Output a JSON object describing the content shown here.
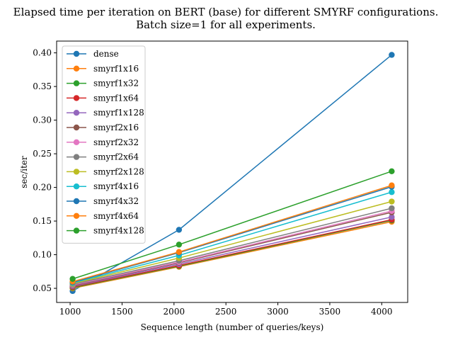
{
  "chart_data": {
    "type": "line",
    "title": "Elapsed time per iteration on BERT (base) for different SMYRF configurations.",
    "subtitle": "Batch size=1 for all experiments.",
    "xlabel": "Sequence length (number of queries/keys)",
    "ylabel": "sec/iter",
    "x": [
      1024,
      2048,
      4096
    ],
    "xlim": [
      870,
      4250
    ],
    "ylim": [
      0.029,
      0.4175
    ],
    "xticks": [
      1000,
      1500,
      2000,
      2500,
      3000,
      3500,
      4000
    ],
    "yticks": [
      0.05,
      0.1,
      0.15,
      0.2,
      0.25,
      0.3,
      0.35,
      0.4
    ],
    "xtick_labels": [
      "1000",
      "1500",
      "2000",
      "2500",
      "3000",
      "3500",
      "4000"
    ],
    "ytick_labels": [
      "0.05",
      "0.10",
      "0.15",
      "0.20",
      "0.25",
      "0.30",
      "0.35",
      "0.40"
    ],
    "grid": false,
    "legend_position": "top-left",
    "series": [
      {
        "name": "dense",
        "color": "#1f77b4",
        "values": [
          0.046,
          0.137,
          0.397
        ]
      },
      {
        "name": "smyrf1x16",
        "color": "#ff7f0e",
        "values": [
          0.05,
          0.082,
          0.149
        ]
      },
      {
        "name": "smyrf1x32",
        "color": "#2ca02c",
        "values": [
          0.051,
          0.083,
          0.151
        ]
      },
      {
        "name": "smyrf1x64",
        "color": "#d62728",
        "values": [
          0.052,
          0.084,
          0.152
        ]
      },
      {
        "name": "smyrf1x128",
        "color": "#9467bd",
        "values": [
          0.053,
          0.086,
          0.156
        ]
      },
      {
        "name": "smyrf2x16",
        "color": "#8c564b",
        "values": [
          0.054,
          0.088,
          0.163
        ]
      },
      {
        "name": "smyrf2x32",
        "color": "#e377c2",
        "values": [
          0.055,
          0.089,
          0.165
        ]
      },
      {
        "name": "smyrf2x64",
        "color": "#7f7f7f",
        "values": [
          0.056,
          0.091,
          0.169
        ]
      },
      {
        "name": "smyrf2x128",
        "color": "#bcbd22",
        "values": [
          0.057,
          0.095,
          0.179
        ]
      },
      {
        "name": "smyrf4x16",
        "color": "#17becf",
        "values": [
          0.058,
          0.099,
          0.193
        ]
      },
      {
        "name": "smyrf4x32",
        "color": "#1f77b4",
        "values": [
          0.059,
          0.103,
          0.201
        ]
      },
      {
        "name": "smyrf4x64",
        "color": "#ff7f0e",
        "values": [
          0.06,
          0.104,
          0.203
        ]
      },
      {
        "name": "smyrf4x128",
        "color": "#2ca02c",
        "values": [
          0.064,
          0.115,
          0.224
        ]
      }
    ]
  }
}
